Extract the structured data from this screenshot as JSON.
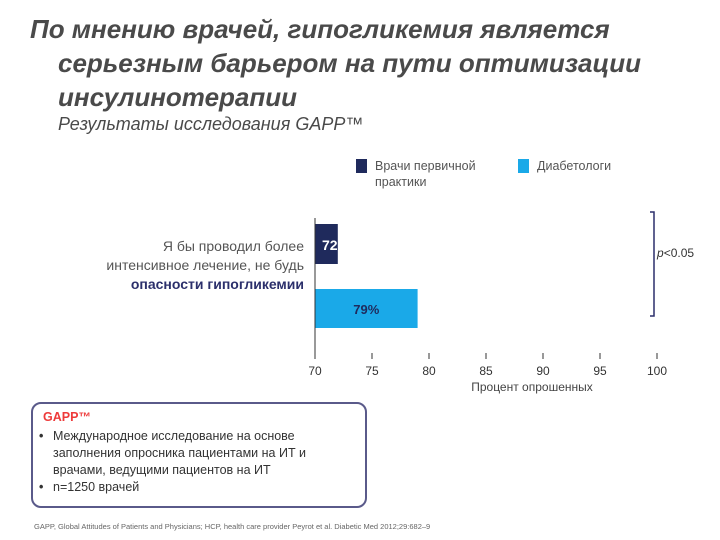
{
  "title": {
    "line1": "По мнению врачей, гипогликемия является",
    "line2": "серьезным барьером на пути оптимизации",
    "line3": "инсулинотерапии"
  },
  "subtitle": "Результаты исследования GAPP™",
  "chart_data": {
    "type": "bar",
    "orientation": "horizontal",
    "categories": [
      [
        "Я бы проводил более",
        "интенсивное лечение, не будь",
        "опасности гипогликемии"
      ]
    ],
    "series": [
      {
        "name": "Врачи первичной практики",
        "values": [
          72
        ],
        "label": "72%",
        "color": "#1f2a5c"
      },
      {
        "name": "Диабетологи",
        "values": [
          79
        ],
        "label": "79%",
        "color": "#1aa9e8"
      }
    ],
    "xlabel": "Процент опрошенных",
    "xlim": [
      70,
      100
    ],
    "xticks": [
      "70",
      "75",
      "80",
      "85",
      "90",
      "95",
      "100"
    ],
    "grid": false,
    "legend": "top",
    "annotation": {
      "text_italic": "p",
      "text_rest": "<0.05"
    }
  },
  "gapp": {
    "title": "GAPP™",
    "bullets": [
      "Международное исследование на основе заполнения опросника пациентами на ИТ и врачами, ведущими пациентов на ИТ",
      "n=1250 врачей"
    ]
  },
  "footnote": "GAPP, Global Attitudes of Patients and Physicians; HCP, health care provider Peyrot et al. Diabetic Med 2012;29:682–9"
}
